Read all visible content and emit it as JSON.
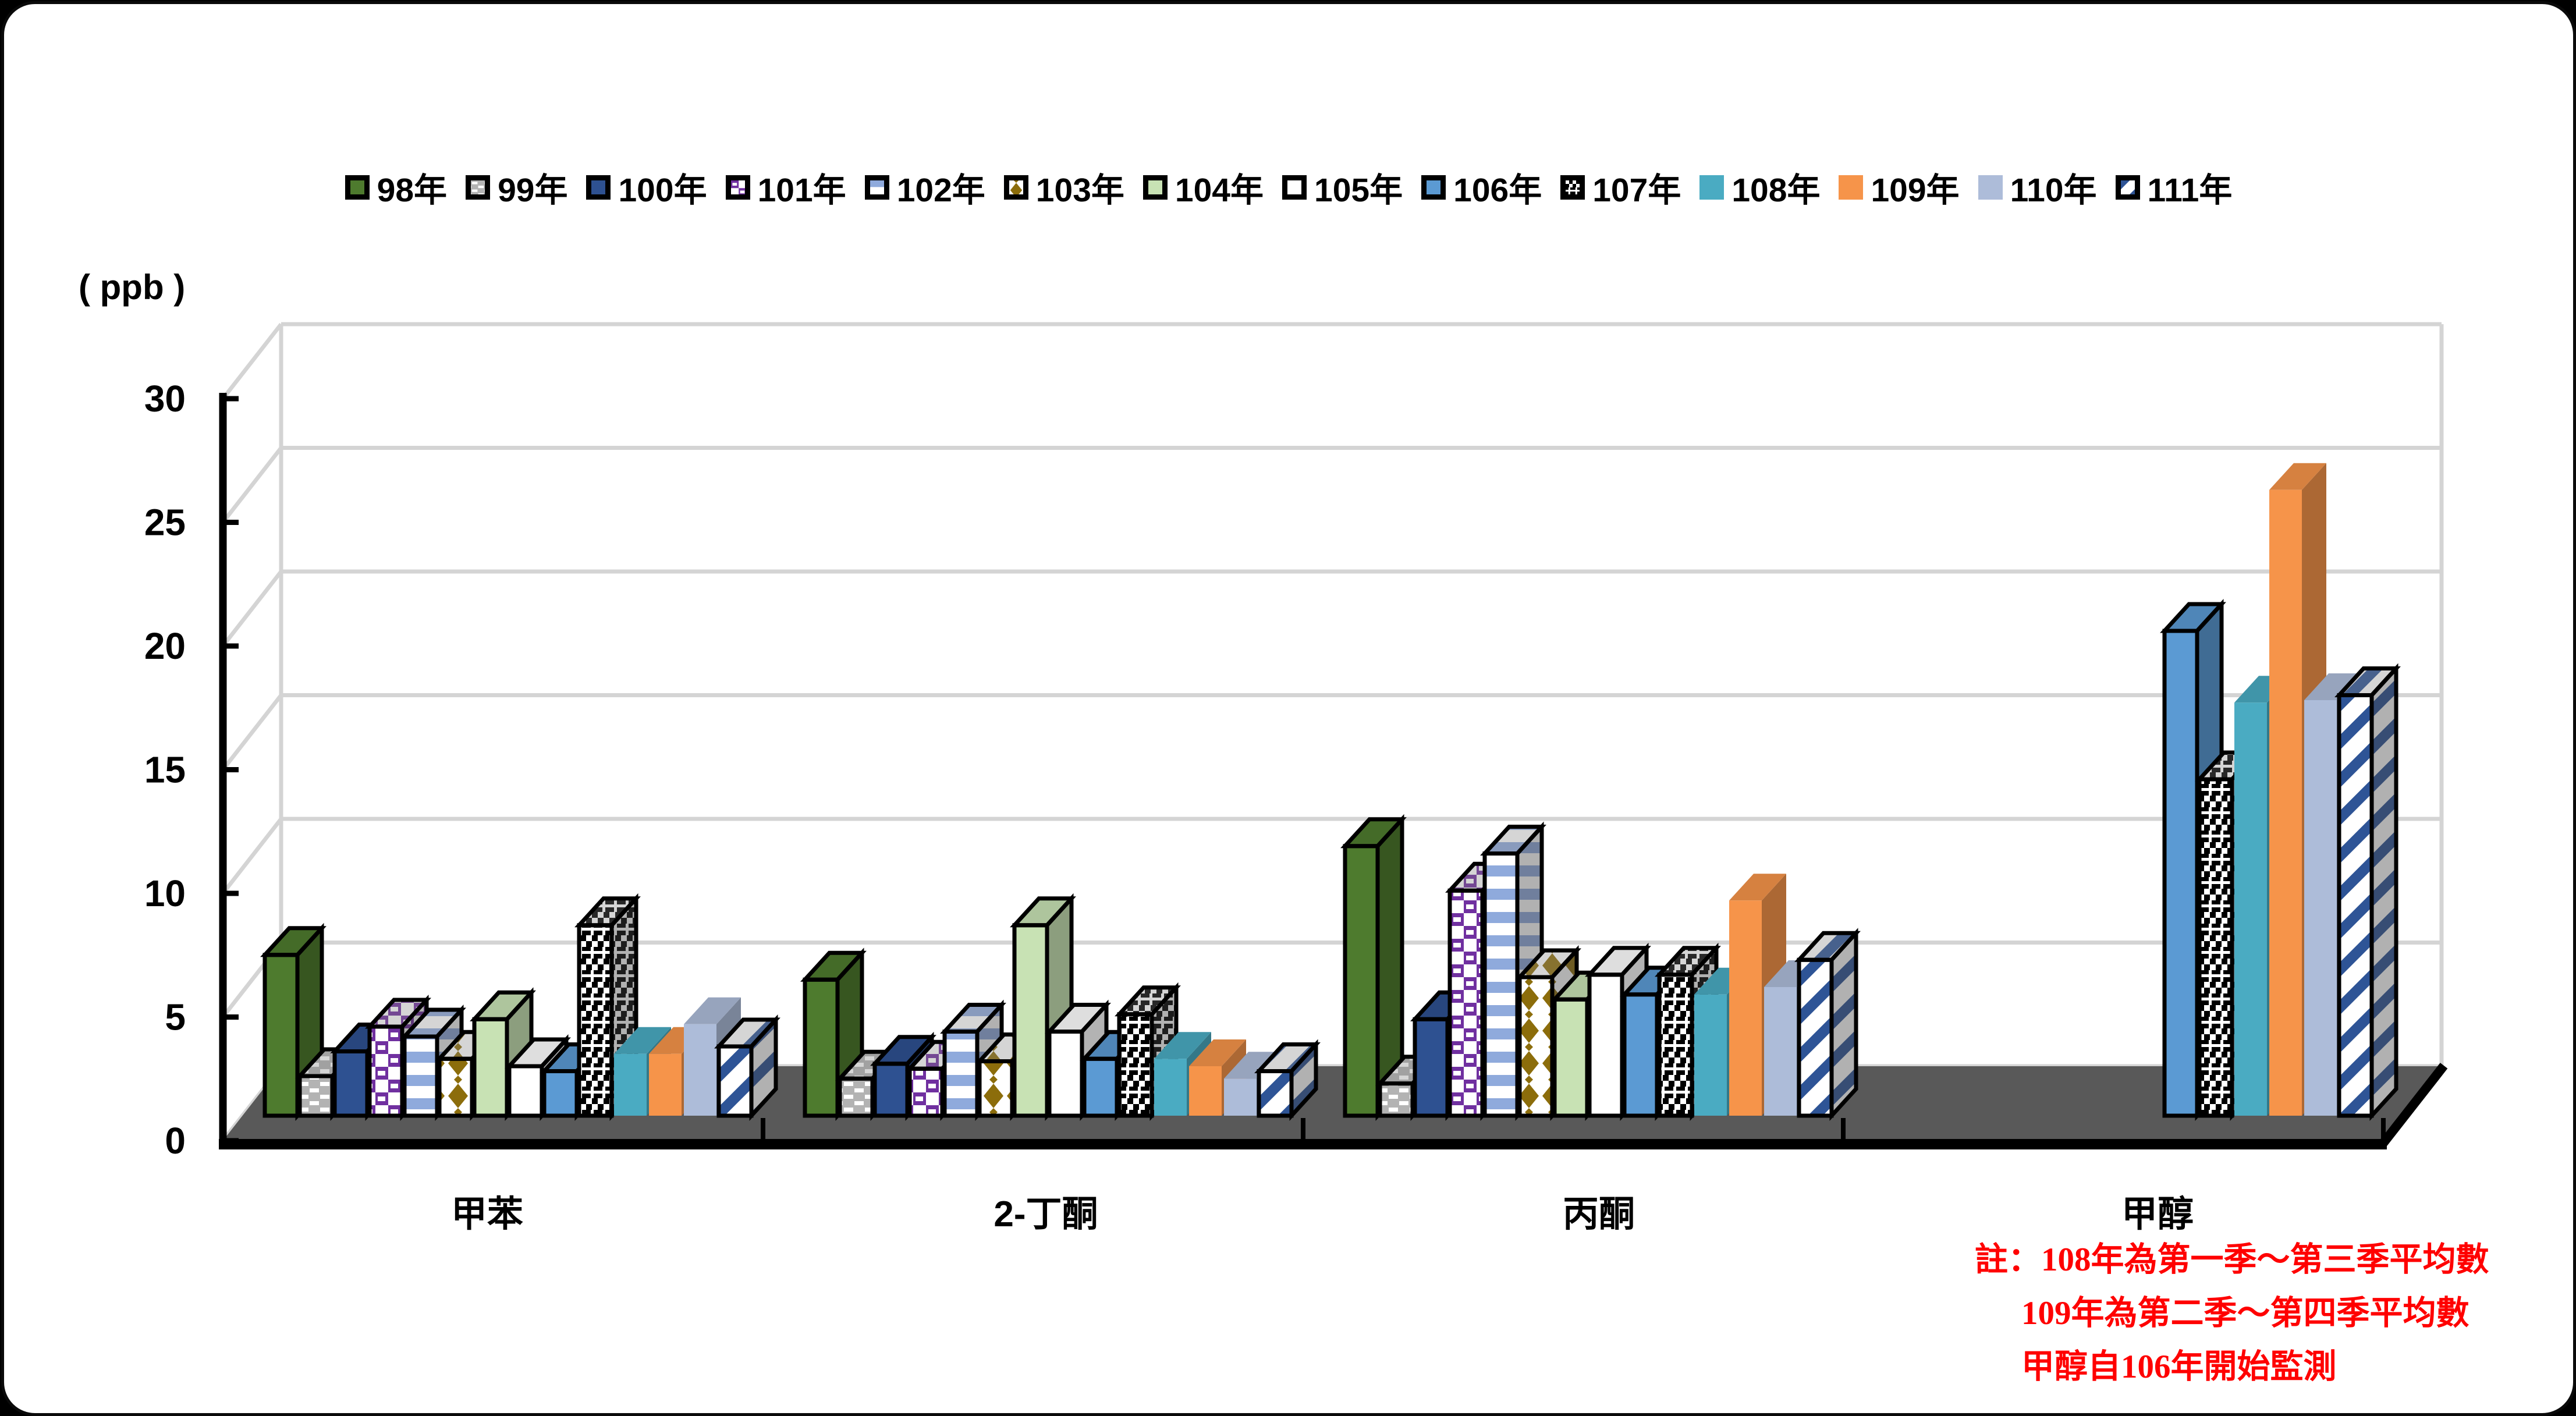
{
  "chart_data": {
    "type": "bar",
    "style": "3d-clustered-column",
    "title": "",
    "ylabel": "( ppb )",
    "xlabel": "",
    "ylim": [
      0,
      30
    ],
    "yticks": [
      0,
      5,
      10,
      15,
      20,
      25,
      30
    ],
    "grid": "horizontal-back-wall",
    "legend_position": "top",
    "background": "#ffffff",
    "wall_line_color": "#d4d4d4",
    "floor_color": "#595959",
    "categories": [
      "甲苯",
      "2-丁酮",
      "丙酮",
      "甲醇"
    ],
    "series": [
      {
        "name": "98年",
        "fill": "solid",
        "color": "#4e7b2e",
        "outline": true,
        "values": [
          6.5,
          5.5,
          10.9,
          null
        ]
      },
      {
        "name": "99年",
        "fill": "gray-white-dashes",
        "color": "#b3b3b3",
        "outline": true,
        "values": [
          1.6,
          1.5,
          1.3,
          null
        ]
      },
      {
        "name": "100年",
        "fill": "solid",
        "color": "#2e5191",
        "outline": true,
        "values": [
          2.6,
          2.1,
          3.9,
          null
        ]
      },
      {
        "name": "101年",
        "fill": "checker-purple-white",
        "color": "#7030a0",
        "outline": true,
        "values": [
          3.6,
          1.9,
          9.1,
          null
        ]
      },
      {
        "name": "102年",
        "fill": "stripes-horizontal-blue",
        "color": "#8faadc",
        "outline": true,
        "values": [
          3.2,
          3.4,
          10.6,
          null
        ]
      },
      {
        "name": "103年",
        "fill": "diamonds-gold",
        "color": "#8c6d0b",
        "outline": true,
        "values": [
          2.3,
          2.2,
          5.6,
          null
        ]
      },
      {
        "name": "104年",
        "fill": "solid",
        "color": "#c8e2b4",
        "outline": true,
        "values": [
          3.9,
          7.7,
          4.7,
          null
        ]
      },
      {
        "name": "105年",
        "fill": "solid",
        "color": "#ffffff",
        "outline": true,
        "values": [
          2.0,
          3.4,
          5.7,
          null
        ]
      },
      {
        "name": "106年",
        "fill": "solid",
        "color": "#5b9ad3",
        "outline": true,
        "values": [
          1.8,
          2.3,
          4.9,
          19.6
        ]
      },
      {
        "name": "107年",
        "fill": "plaid-black-white",
        "color": "#000000",
        "outline": true,
        "values": [
          7.7,
          4.1,
          5.7,
          13.6
        ]
      },
      {
        "name": "108年",
        "fill": "solid",
        "color": "#4aabc2",
        "outline": false,
        "values": [
          2.5,
          2.3,
          4.9,
          16.7
        ]
      },
      {
        "name": "109年",
        "fill": "solid",
        "color": "#f6944a",
        "outline": false,
        "values": [
          2.5,
          2.0,
          8.7,
          25.3
        ]
      },
      {
        "name": "110年",
        "fill": "solid",
        "color": "#adbcd9",
        "outline": false,
        "values": [
          3.7,
          1.5,
          5.2,
          16.8
        ]
      },
      {
        "name": "111年",
        "fill": "stripes-diagonal-blue",
        "color": "#2e5496",
        "outline": true,
        "values": [
          2.8,
          1.8,
          6.3,
          17.0
        ]
      }
    ]
  },
  "note": {
    "color": "#ff0000",
    "lines": [
      "註：108年為第一季～第三季平均數",
      "109年為第二季～第四季平均數",
      "甲醇自106年開始監測"
    ]
  }
}
